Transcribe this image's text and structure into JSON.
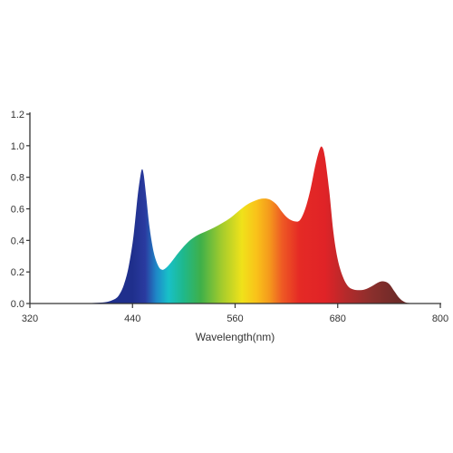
{
  "chart_data": {
    "type": "area",
    "title": "",
    "xlabel": "Wavelength(nm)",
    "ylabel": "",
    "xlim": [
      320,
      800
    ],
    "ylim": [
      0,
      1.2
    ],
    "x_ticks": [
      320,
      440,
      560,
      680,
      800
    ],
    "x_tick_labels": [
      "320",
      "440",
      "560",
      "680",
      "800"
    ],
    "y_ticks": [
      0,
      0.2,
      0.4,
      0.6,
      0.8,
      1.0,
      1.2
    ],
    "y_tick_labels": [
      "0.0",
      "0.2",
      "0.4",
      "0.6",
      "0.8",
      "1.0",
      "1.2"
    ],
    "grid": false,
    "legend": "none",
    "fill": "visible-spectrum gradient",
    "series": [
      {
        "points": [
          [
            380,
            0.0
          ],
          [
            390,
            0.002
          ],
          [
            400,
            0.005
          ],
          [
            410,
            0.01
          ],
          [
            420,
            0.03
          ],
          [
            425,
            0.06
          ],
          [
            430,
            0.12
          ],
          [
            435,
            0.22
          ],
          [
            440,
            0.38
          ],
          [
            443,
            0.52
          ],
          [
            446,
            0.68
          ],
          [
            449,
            0.8
          ],
          [
            451,
            0.85
          ],
          [
            453,
            0.82
          ],
          [
            456,
            0.68
          ],
          [
            460,
            0.48
          ],
          [
            465,
            0.32
          ],
          [
            470,
            0.24
          ],
          [
            474,
            0.215
          ],
          [
            478,
            0.22
          ],
          [
            485,
            0.26
          ],
          [
            495,
            0.33
          ],
          [
            505,
            0.39
          ],
          [
            515,
            0.43
          ],
          [
            525,
            0.455
          ],
          [
            535,
            0.48
          ],
          [
            545,
            0.51
          ],
          [
            555,
            0.545
          ],
          [
            565,
            0.59
          ],
          [
            575,
            0.63
          ],
          [
            585,
            0.655
          ],
          [
            593,
            0.665
          ],
          [
            600,
            0.66
          ],
          [
            608,
            0.63
          ],
          [
            615,
            0.58
          ],
          [
            622,
            0.54
          ],
          [
            630,
            0.52
          ],
          [
            636,
            0.53
          ],
          [
            642,
            0.6
          ],
          [
            648,
            0.72
          ],
          [
            654,
            0.88
          ],
          [
            659,
            0.98
          ],
          [
            662,
            0.99
          ],
          [
            665,
            0.93
          ],
          [
            670,
            0.72
          ],
          [
            675,
            0.45
          ],
          [
            680,
            0.28
          ],
          [
            686,
            0.17
          ],
          [
            692,
            0.11
          ],
          [
            698,
            0.09
          ],
          [
            705,
            0.085
          ],
          [
            712,
            0.09
          ],
          [
            720,
            0.11
          ],
          [
            728,
            0.135
          ],
          [
            734,
            0.14
          ],
          [
            740,
            0.125
          ],
          [
            746,
            0.08
          ],
          [
            752,
            0.035
          ],
          [
            758,
            0.01
          ],
          [
            765,
            0.002
          ],
          [
            775,
            0.0
          ]
        ]
      }
    ],
    "colors": {
      "axis": "#333333",
      "spectrum_stops": [
        [
          440,
          "#1f2f8c"
        ],
        [
          455,
          "#2a3ba0"
        ],
        [
          468,
          "#1e88c8"
        ],
        [
          482,
          "#18c0c8"
        ],
        [
          500,
          "#1fb88a"
        ],
        [
          520,
          "#3fb049"
        ],
        [
          545,
          "#a6cc2c"
        ],
        [
          568,
          "#f0e21a"
        ],
        [
          585,
          "#f9c21a"
        ],
        [
          600,
          "#f59a1c"
        ],
        [
          615,
          "#ee5a24"
        ],
        [
          635,
          "#e52a25"
        ],
        [
          665,
          "#e02327"
        ],
        [
          690,
          "#b42a2b"
        ],
        [
          720,
          "#8a2f2c"
        ],
        [
          750,
          "#6e2a28"
        ]
      ]
    }
  }
}
